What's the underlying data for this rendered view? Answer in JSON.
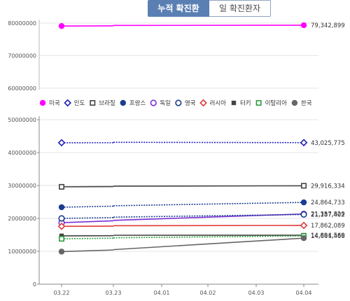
{
  "tabs": [
    {
      "label": "누적 확진환자",
      "active": true
    },
    {
      "label": "일 확진환자",
      "active": false
    }
  ],
  "chart_data": {
    "type": "line",
    "categories": [
      "03.22",
      "03.23",
      "04.01",
      "04.02",
      "04.03",
      "04.04"
    ],
    "broken_y_axis": true,
    "upper_ticks": [
      "60000000",
      "70000000",
      "80000000"
    ],
    "lower_ticks": [
      "0",
      "10000000",
      "20000000",
      "30000000",
      "40000000",
      "50000000"
    ],
    "upper_range": [
      60000000,
      80000000
    ],
    "lower_range": [
      0,
      50000000
    ],
    "series": [
      {
        "name": "미국",
        "color": "#ff00ff",
        "marker": "filled-circle",
        "line": "solid",
        "values": [
          79100000,
          null,
          null,
          null,
          null,
          79342899
        ],
        "end_label": "79,342,899"
      },
      {
        "name": "인도",
        "color": "#1f1fbf",
        "marker": "open-diamond",
        "line": "dotted",
        "values": [
          43000000,
          null,
          null,
          null,
          null,
          43025775
        ],
        "end_label": "43,025,775"
      },
      {
        "name": "브라질",
        "color": "#444444",
        "marker": "open-square",
        "line": "solid",
        "values": [
          29600000,
          null,
          null,
          null,
          null,
          29916334
        ],
        "end_label": "29,916,334"
      },
      {
        "name": "프랑스",
        "color": "#1a3d8f",
        "marker": "filled-circle",
        "line": "dotted",
        "values": [
          23400000,
          null,
          null,
          null,
          null,
          24864733
        ],
        "end_label": "24,864,733"
      },
      {
        "name": "독일",
        "color": "#7a2fd6",
        "marker": "open-circle",
        "line": "solid",
        "values": [
          18700000,
          null,
          null,
          null,
          null,
          21357829
        ],
        "end_label": "21,357,829"
      },
      {
        "name": "영국",
        "color": "#1a3d8f",
        "marker": "open-circle",
        "line": "dotted",
        "values": [
          20000000,
          null,
          null,
          null,
          null,
          21187402
        ],
        "end_label": "21,187,402"
      },
      {
        "name": "러시아",
        "color": "#e03a3a",
        "marker": "open-diamond",
        "line": "solid",
        "values": [
          17600000,
          null,
          null,
          null,
          null,
          17862089
        ],
        "end_label": "17,862,089"
      },
      {
        "name": "터키",
        "color": "#444444",
        "marker": "filled-square",
        "line": "solid",
        "values": [
          14700000,
          null,
          null,
          null,
          null,
          14894569
        ],
        "end_label": "14,894,569"
      },
      {
        "name": "이탈리아",
        "color": "#2e9e3e",
        "marker": "open-square",
        "line": "dotted",
        "values": [
          13800000,
          null,
          null,
          null,
          null,
          14661466
        ],
        "end_label": "14,661,466"
      },
      {
        "name": "한국",
        "color": "#666666",
        "marker": "filled-circle",
        "line": "solid",
        "values": [
          9900000,
          10400000,
          null,
          null,
          null,
          14000000
        ],
        "end_label": ""
      }
    ]
  }
}
